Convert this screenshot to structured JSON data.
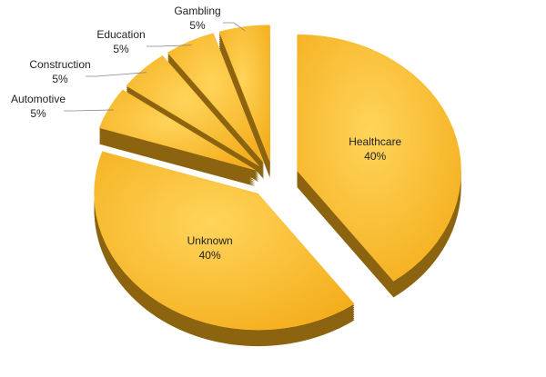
{
  "chart_data": {
    "type": "pie",
    "categories": [
      "Healthcare",
      "Unknown",
      "Automotive",
      "Construction",
      "Education",
      "Gambling"
    ],
    "values": [
      40,
      40,
      5,
      5,
      5,
      5
    ],
    "value_labels": [
      "40%",
      "40%",
      "5%",
      "5%",
      "5%",
      "5%"
    ],
    "color": "#fbbd32"
  }
}
